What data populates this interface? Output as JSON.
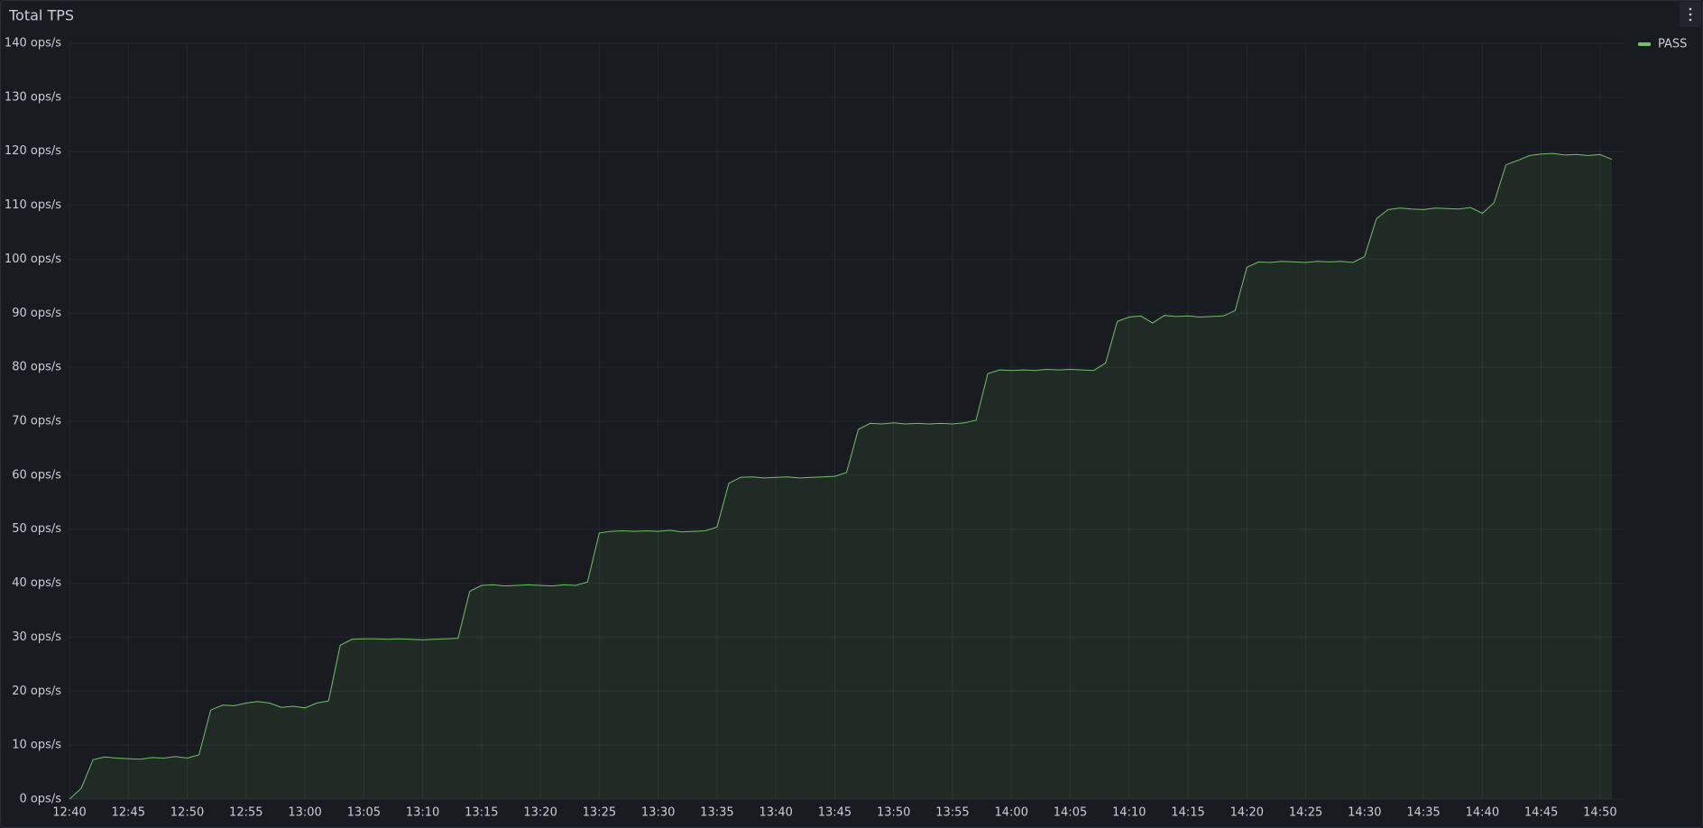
{
  "chart_data": {
    "type": "area",
    "title": "Total TPS",
    "x": [
      "12:40",
      "12:41",
      "12:42",
      "12:43",
      "12:44",
      "12:45",
      "12:46",
      "12:47",
      "12:48",
      "12:49",
      "12:50",
      "12:51",
      "12:52",
      "12:53",
      "12:54",
      "12:55",
      "12:56",
      "12:57",
      "12:58",
      "12:59",
      "13:00",
      "13:01",
      "13:02",
      "13:03",
      "13:04",
      "13:05",
      "13:06",
      "13:07",
      "13:08",
      "13:09",
      "13:10",
      "13:11",
      "13:12",
      "13:13",
      "13:14",
      "13:15",
      "13:16",
      "13:17",
      "13:18",
      "13:19",
      "13:20",
      "13:21",
      "13:22",
      "13:23",
      "13:24",
      "13:25",
      "13:26",
      "13:27",
      "13:28",
      "13:29",
      "13:30",
      "13:31",
      "13:32",
      "13:33",
      "13:34",
      "13:35",
      "13:36",
      "13:37",
      "13:38",
      "13:39",
      "13:40",
      "13:41",
      "13:42",
      "13:43",
      "13:44",
      "13:45",
      "13:46",
      "13:47",
      "13:48",
      "13:49",
      "13:50",
      "13:51",
      "13:52",
      "13:53",
      "13:54",
      "13:55",
      "13:56",
      "13:57",
      "13:58",
      "13:59",
      "14:00",
      "14:01",
      "14:02",
      "14:03",
      "14:04",
      "14:05",
      "14:06",
      "14:07",
      "14:08",
      "14:09",
      "14:10",
      "14:11",
      "14:12",
      "14:13",
      "14:14",
      "14:15",
      "14:16",
      "14:17",
      "14:18",
      "14:19",
      "14:20",
      "14:21",
      "14:22",
      "14:23",
      "14:24",
      "14:25",
      "14:26",
      "14:27",
      "14:28",
      "14:29",
      "14:30",
      "14:31",
      "14:32",
      "14:33",
      "14:34",
      "14:35",
      "14:36",
      "14:37",
      "14:38",
      "14:39",
      "14:40",
      "14:41",
      "14:42",
      "14:43",
      "14:44",
      "14:45",
      "14:46",
      "14:47",
      "14:48",
      "14:49",
      "14:50",
      "14:51"
    ],
    "series": [
      {
        "name": "PASS",
        "color": "#73bf69",
        "values": [
          0,
          2,
          7.3,
          7.8,
          7.6,
          7.5,
          7.4,
          7.7,
          7.6,
          7.9,
          7.6,
          8.2,
          16.5,
          17.4,
          17.3,
          17.8,
          18.1,
          17.8,
          17.0,
          17.2,
          16.9,
          17.8,
          18.2,
          28.5,
          29.6,
          29.7,
          29.7,
          29.6,
          29.7,
          29.6,
          29.5,
          29.6,
          29.7,
          29.8,
          38.5,
          39.6,
          39.7,
          39.5,
          39.6,
          39.7,
          39.6,
          39.5,
          39.7,
          39.6,
          40.2,
          49.3,
          49.6,
          49.7,
          49.6,
          49.7,
          49.6,
          49.8,
          49.5,
          49.6,
          49.7,
          50.4,
          58.5,
          59.6,
          59.7,
          59.5,
          59.6,
          59.7,
          59.5,
          59.6,
          59.7,
          59.8,
          60.5,
          68.5,
          69.6,
          69.5,
          69.7,
          69.5,
          69.6,
          69.5,
          69.6,
          69.5,
          69.7,
          70.2,
          78.8,
          79.5,
          79.4,
          79.5,
          79.4,
          79.6,
          79.5,
          79.6,
          79.5,
          79.4,
          80.8,
          88.5,
          89.3,
          89.5,
          88.2,
          89.6,
          89.4,
          89.5,
          89.3,
          89.4,
          89.5,
          90.5,
          98.5,
          99.5,
          99.4,
          99.6,
          99.5,
          99.4,
          99.6,
          99.5,
          99.6,
          99.4,
          100.5,
          107.5,
          109.2,
          109.5,
          109.3,
          109.2,
          109.5,
          109.4,
          109.3,
          109.6,
          108.5,
          110.5,
          117.5,
          118.3,
          119.2,
          119.5,
          119.6,
          119.3,
          119.4,
          119.2,
          119.4,
          118.5
        ]
      }
    ],
    "xlim": [
      "12:40",
      "14:52"
    ],
    "xticks": [
      "12:40",
      "12:45",
      "12:50",
      "12:55",
      "13:00",
      "13:05",
      "13:10",
      "13:15",
      "13:20",
      "13:25",
      "13:30",
      "13:35",
      "13:40",
      "13:45",
      "13:50",
      "13:55",
      "14:00",
      "14:05",
      "14:10",
      "14:15",
      "14:20",
      "14:25",
      "14:30",
      "14:35",
      "14:40",
      "14:45",
      "14:50"
    ],
    "ylim": [
      0,
      140
    ],
    "yticks": [
      {
        "value": 0,
        "label": "0 ops/s"
      },
      {
        "value": 10,
        "label": "10 ops/s"
      },
      {
        "value": 20,
        "label": "20 ops/s"
      },
      {
        "value": 30,
        "label": "30 ops/s"
      },
      {
        "value": 40,
        "label": "40 ops/s"
      },
      {
        "value": 50,
        "label": "50 ops/s"
      },
      {
        "value": 60,
        "label": "60 ops/s"
      },
      {
        "value": 70,
        "label": "70 ops/s"
      },
      {
        "value": 80,
        "label": "80 ops/s"
      },
      {
        "value": 90,
        "label": "90 ops/s"
      },
      {
        "value": 100,
        "label": "100 ops/s"
      },
      {
        "value": 110,
        "label": "110 ops/s"
      },
      {
        "value": 120,
        "label": "120 ops/s"
      },
      {
        "value": 130,
        "label": "130 ops/s"
      },
      {
        "value": 140,
        "label": "140 ops/s"
      }
    ],
    "grid": true,
    "legend": "top-right"
  }
}
